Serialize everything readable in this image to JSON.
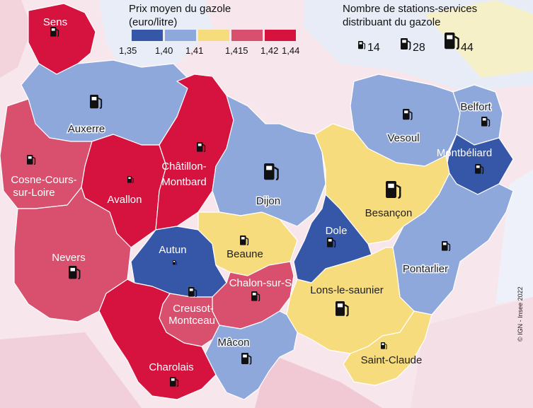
{
  "legend_price": {
    "title_line1": "Prix moyen du gazole",
    "title_line2": "(euro/litre)",
    "breaks": [
      "1,35",
      "1,40",
      "1,41",
      "1,415",
      "1,42",
      "1,44"
    ],
    "classes": [
      {
        "range": "1,35–1,40",
        "color": "#3656a8"
      },
      {
        "range": "1,40–1,41",
        "color": "#8fa8dc"
      },
      {
        "range": "1,41–1,415",
        "color": "#f7dc7e"
      },
      {
        "range": "1,415–1,42",
        "color": "#d9506e"
      },
      {
        "range": "1,42–1,44",
        "color": "#d6123f"
      }
    ]
  },
  "legend_stations": {
    "title_line1": "Nombre de stations-services",
    "title_line2": "distribuant du gazole",
    "sizes": [
      "14",
      "28",
      "44"
    ]
  },
  "copyright": "© IGN - Insee 2022",
  "regions": [
    {
      "name": "Sens",
      "price_class": 4
    },
    {
      "name": "Auxerre",
      "price_class": 1
    },
    {
      "name": "Cosne-Cours-sur-Loire",
      "label_lines": [
        "Cosne-Cours-",
        "sur-Loire"
      ],
      "price_class": 3
    },
    {
      "name": "Avallon",
      "price_class": 4
    },
    {
      "name": "Châtillon-Montbard",
      "label_lines": [
        "Châtillon-",
        "Montbard"
      ],
      "price_class": 4
    },
    {
      "name": "Dijon",
      "price_class": 1
    },
    {
      "name": "Vesoul",
      "price_class": 1
    },
    {
      "name": "Belfort",
      "price_class": 1
    },
    {
      "name": "Montbéliard",
      "price_class": 0
    },
    {
      "name": "Besançon",
      "price_class": 2
    },
    {
      "name": "Nevers",
      "price_class": 3
    },
    {
      "name": "Autun",
      "price_class": 0
    },
    {
      "name": "Beaune",
      "price_class": 2
    },
    {
      "name": "Dole",
      "price_class": 0
    },
    {
      "name": "Pontarlier",
      "price_class": 1
    },
    {
      "name": "Chalon-sur-S.",
      "price_class": 3
    },
    {
      "name": "Creusot-Montceau",
      "label_lines": [
        "Creusot-",
        "Montceau"
      ],
      "price_class": 3
    },
    {
      "name": "Lons-le-saunier",
      "price_class": 2
    },
    {
      "name": "Mâcon",
      "price_class": 1
    },
    {
      "name": "Charolais",
      "price_class": 4
    },
    {
      "name": "Saint-Claude",
      "price_class": 2
    }
  ]
}
